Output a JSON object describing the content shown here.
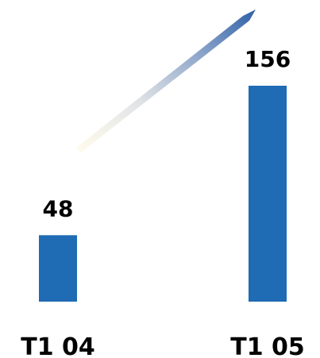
{
  "chart_data": {
    "type": "bar",
    "categories": [
      "T1 04",
      "T1 05"
    ],
    "values": [
      48,
      156
    ],
    "data_labels": [
      "48",
      "156"
    ],
    "title": "",
    "xlabel": "",
    "ylabel": "",
    "ylim": [
      0,
      160
    ],
    "grid": false,
    "legend": "none",
    "colors": {
      "bar": "#1F6BB4",
      "trend_arrow_start": "#FFF8E0",
      "trend_arrow_end": "#2E5FA8"
    }
  }
}
